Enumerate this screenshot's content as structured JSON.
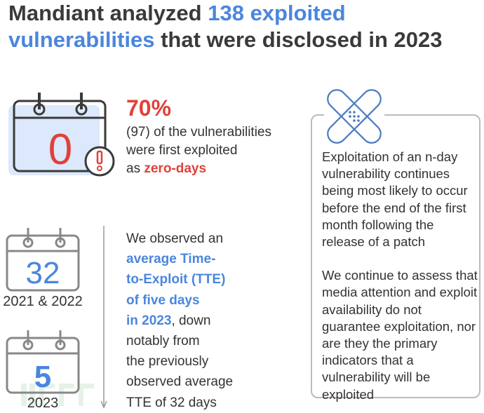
{
  "title": {
    "line1_prefix": "Mandiant analyzed ",
    "line1_highlight": "138 exploited",
    "line2_highlight": "vulnerabilities",
    "line2_suffix": " that were disclosed in 2023"
  },
  "zero_day": {
    "calendar_number": "0",
    "percent": "70%",
    "line1": "(97) of the vulnerabilities",
    "line2": "were first exploited",
    "line3_prefix": "as ",
    "line3_highlight": "zero-days"
  },
  "tte": {
    "calendar1_number": "32",
    "calendar1_label": "2021 & 2022",
    "calendar2_number": "5",
    "calendar2_label": "2023",
    "lines": [
      "We observed an",
      "average Time-",
      "to-Exploit (TTE)",
      "of five days"
    ],
    "line5_highlight": "in 2023",
    "line5_suffix": ", down",
    "lines_after": [
      "notably from",
      "the previously",
      "observed average",
      "TTE of 32 days"
    ]
  },
  "nday": {
    "paragraph1": "Exploitation of an n-day vulnerability continues being most likely to occur before the end of the first month following the release of a patch",
    "paragraph2": "We continue to assess that media attention and exploit availability do not guarantee exploitation, nor are they the primary indicators that a vulnerability will be exploited"
  },
  "watermark": "FREEBUF",
  "colors": {
    "blue": "#4a86de",
    "red": "#e0413a",
    "text": "#333333"
  }
}
